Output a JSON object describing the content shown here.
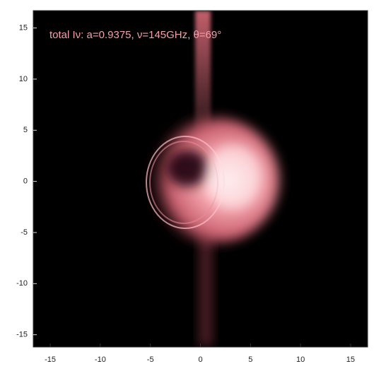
{
  "chart_data": {
    "type": "image",
    "title": "total Iν: a=0.9375,  ν=145GHz,   θ=69°",
    "xlim": [
      -16.7,
      16.7
    ],
    "ylim": [
      -16.2,
      16.7
    ],
    "xticks": [
      -15,
      -10,
      -5,
      0,
      5,
      10,
      15
    ],
    "yticks": [
      -15,
      -10,
      -5,
      0,
      5,
      10,
      15
    ],
    "grid": false
  }
}
